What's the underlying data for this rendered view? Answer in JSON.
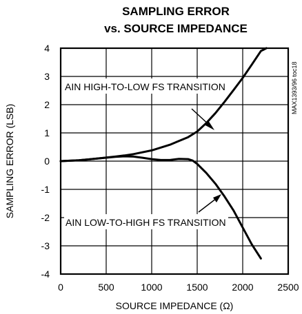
{
  "chart_data": {
    "type": "line",
    "title_line1": "SAMPLING ERROR",
    "title_line2": "vs. SOURCE IMPEDANCE",
    "xlabel": "SOURCE IMPEDANCE (Ω)",
    "ylabel": "SAMPLING ERROR (LSB)",
    "xlim": [
      0,
      2500
    ],
    "ylim": [
      -4,
      4
    ],
    "x_ticks": [
      0,
      500,
      1000,
      1500,
      2000,
      2500
    ],
    "y_ticks": [
      4,
      3,
      2,
      1,
      0,
      -1,
      -2,
      -3,
      -4
    ],
    "grid": true,
    "side_code": "MAX1393/96 toc18",
    "series": [
      {
        "name": "AIN HIGH-TO-LOW FS TRANSITION",
        "x": [
          0,
          200,
          400,
          600,
          700,
          800,
          1000,
          1200,
          1400,
          1500,
          1600,
          1700,
          1800,
          1900,
          2000,
          2100,
          2200,
          2260
        ],
        "y": [
          0,
          0.03,
          0.09,
          0.16,
          0.2,
          0.25,
          0.38,
          0.58,
          0.85,
          1.05,
          1.35,
          1.7,
          2.1,
          2.52,
          2.95,
          3.42,
          3.9,
          4.0
        ]
      },
      {
        "name": "AIN LOW-TO-HIGH FS TRANSITION",
        "x": [
          0,
          200,
          400,
          600,
          700,
          800,
          900,
          1000,
          1100,
          1200,
          1300,
          1400,
          1450,
          1500,
          1600,
          1700,
          1800,
          1900,
          2000,
          2100,
          2200
        ],
        "y": [
          0,
          0.03,
          0.09,
          0.15,
          0.17,
          0.16,
          0.12,
          0.07,
          0.04,
          0.04,
          0.08,
          0.07,
          0.02,
          -0.1,
          -0.42,
          -0.8,
          -1.25,
          -1.75,
          -2.35,
          -2.95,
          -3.45
        ]
      }
    ],
    "annotations": [
      {
        "text": "AIN HIGH-TO-LOW FS TRANSITION",
        "series": 0
      },
      {
        "text": "AIN LOW-TO-HIGH FS TRANSITION",
        "series": 1
      }
    ]
  }
}
